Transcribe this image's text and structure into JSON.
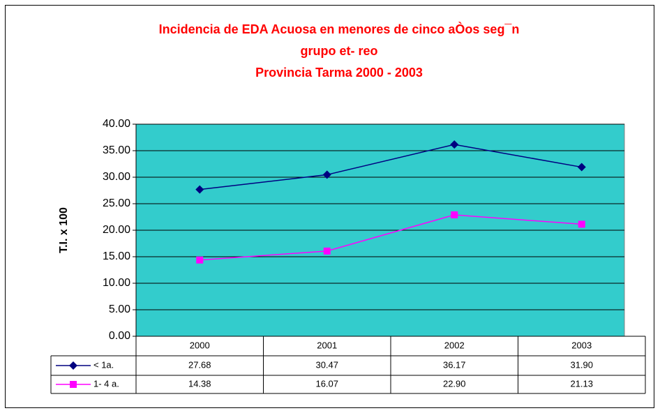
{
  "chart_data": {
    "type": "line",
    "title": [
      "Incidencia de EDA Acuosa en menores de cinco aÒos seg¯n",
      "grupo et- reo",
      "Provincia Tarma      2000 - 2003"
    ],
    "y_label": "T.I. x 100",
    "categories": [
      "2000",
      "2001",
      "2002",
      "2003"
    ],
    "series": [
      {
        "name": "< 1a.",
        "color": "#000080",
        "marker": "diamond",
        "values": [
          27.68,
          30.47,
          36.17,
          31.9
        ],
        "value_labels": [
          "27.68",
          "30.47",
          "36.17",
          "31.90"
        ]
      },
      {
        "name": "1- 4 a.",
        "color": "#FF00FF",
        "marker": "square",
        "values": [
          14.38,
          16.07,
          22.9,
          21.13
        ],
        "value_labels": [
          "14.38",
          "16.07",
          "22.90",
          "21.13"
        ]
      }
    ],
    "ylim": [
      0,
      40
    ],
    "yticks": [
      {
        "value": 0,
        "label": "0.00"
      },
      {
        "value": 5,
        "label": "5.00"
      },
      {
        "value": 10,
        "label": "10.00"
      },
      {
        "value": 15,
        "label": "15.00"
      },
      {
        "value": 20,
        "label": "20.00"
      },
      {
        "value": 25,
        "label": "25.00"
      },
      {
        "value": 30,
        "label": "30.00"
      },
      {
        "value": 35,
        "label": "35.00"
      },
      {
        "value": 40,
        "label": "40.00"
      }
    ],
    "grid": true,
    "plot_background": "#33CCCC"
  }
}
